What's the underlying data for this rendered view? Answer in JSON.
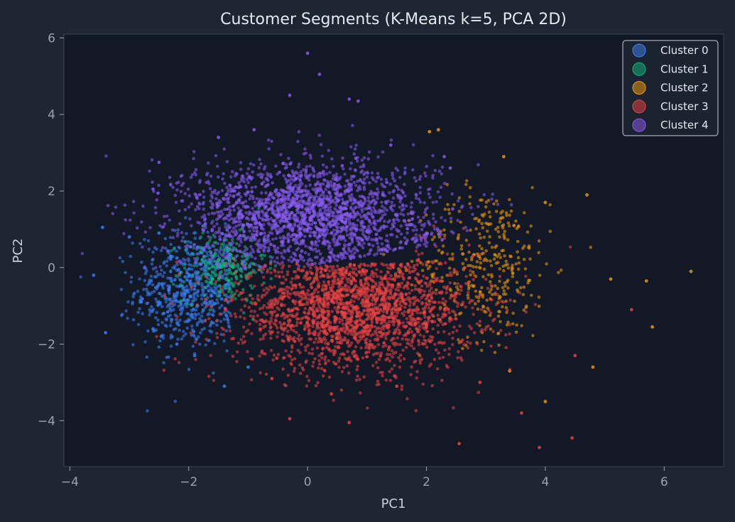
{
  "chart_data": {
    "type": "scatter",
    "title": "Customer Segments (K-Means k=5, PCA 2D)",
    "xlabel": "PC1",
    "ylabel": "PC2",
    "xlim": [
      -4.1,
      7.0
    ],
    "ylim": [
      -5.2,
      6.1
    ],
    "xticks": [
      -4,
      -2,
      0,
      2,
      4,
      6
    ],
    "yticks": [
      -4,
      -2,
      0,
      2,
      4,
      6
    ],
    "xtick_labels": [
      "−4",
      "−2",
      "0",
      "2",
      "4",
      "6"
    ],
    "ytick_labels": [
      "−4",
      "−2",
      "0",
      "2",
      "4",
      "6"
    ],
    "grid": false,
    "legend_position": "top-right",
    "series": [
      {
        "name": "Cluster 0",
        "color": "#3b82f6",
        "center": [
          -2.0,
          -0.6
        ],
        "spread": [
          0.45,
          0.75
        ],
        "samples": [
          [
            -3.6,
            -0.2
          ],
          [
            -3.45,
            1.05
          ],
          [
            -3.4,
            -1.7
          ],
          [
            -3.0,
            0.8
          ],
          [
            -2.6,
            -1.6
          ],
          [
            -2.5,
            0.9
          ],
          [
            -2.2,
            -2.0
          ],
          [
            -1.9,
            -2.3
          ],
          [
            -1.4,
            -3.1
          ],
          [
            -1.0,
            -2.6
          ],
          [
            -2.8,
            -0.9
          ],
          [
            -2.3,
            0.3
          ]
        ]
      },
      {
        "name": "Cluster 1",
        "color": "#10b981",
        "center": [
          -1.4,
          0.0
        ],
        "spread": [
          0.35,
          0.45
        ],
        "samples": [
          [
            -1.8,
            0.4
          ],
          [
            -1.5,
            0.2
          ],
          [
            -1.2,
            -0.1
          ],
          [
            -1.6,
            -0.3
          ],
          [
            -1.1,
            0.1
          ],
          [
            -1.3,
            0.35
          ]
        ]
      },
      {
        "name": "Cluster 2",
        "color": "#f59e0b",
        "center": [
          3.0,
          0.1
        ],
        "spread": [
          0.55,
          1.0
        ],
        "samples": [
          [
            2.05,
            3.55
          ],
          [
            2.2,
            3.6
          ],
          [
            3.3,
            2.9
          ],
          [
            4.0,
            1.7
          ],
          [
            4.7,
            1.9
          ],
          [
            5.1,
            -0.3
          ],
          [
            5.7,
            -0.35
          ],
          [
            5.8,
            -1.55
          ],
          [
            6.45,
            -0.1
          ],
          [
            4.8,
            -2.6
          ],
          [
            3.4,
            -2.7
          ],
          [
            4.0,
            -3.5
          ]
        ]
      },
      {
        "name": "Cluster 3",
        "color": "#ef4444",
        "center": [
          0.8,
          -1.1
        ],
        "spread": [
          1.0,
          0.75
        ],
        "samples": [
          [
            -0.3,
            -3.95
          ],
          [
            0.7,
            -4.05
          ],
          [
            2.55,
            -4.6
          ],
          [
            3.6,
            -3.8
          ],
          [
            3.9,
            -4.7
          ],
          [
            4.45,
            -4.45
          ],
          [
            5.45,
            -1.1
          ],
          [
            4.5,
            -2.3
          ],
          [
            2.9,
            -3.0
          ],
          [
            1.5,
            -3.1
          ],
          [
            0.4,
            -3.3
          ],
          [
            -0.6,
            -2.9
          ]
        ]
      },
      {
        "name": "Cluster 4",
        "color": "#8b5cf6",
        "center": [
          0.0,
          1.4
        ],
        "spread": [
          1.05,
          0.7
        ],
        "samples": [
          [
            0.0,
            5.6
          ],
          [
            0.2,
            5.05
          ],
          [
            -0.3,
            4.5
          ],
          [
            0.7,
            4.4
          ],
          [
            0.85,
            4.35
          ],
          [
            -2.5,
            2.75
          ],
          [
            -2.6,
            2.05
          ],
          [
            2.3,
            2.9
          ],
          [
            2.4,
            2.6
          ],
          [
            -1.5,
            3.4
          ],
          [
            1.4,
            3.2
          ],
          [
            -0.9,
            3.6
          ]
        ]
      }
    ]
  }
}
